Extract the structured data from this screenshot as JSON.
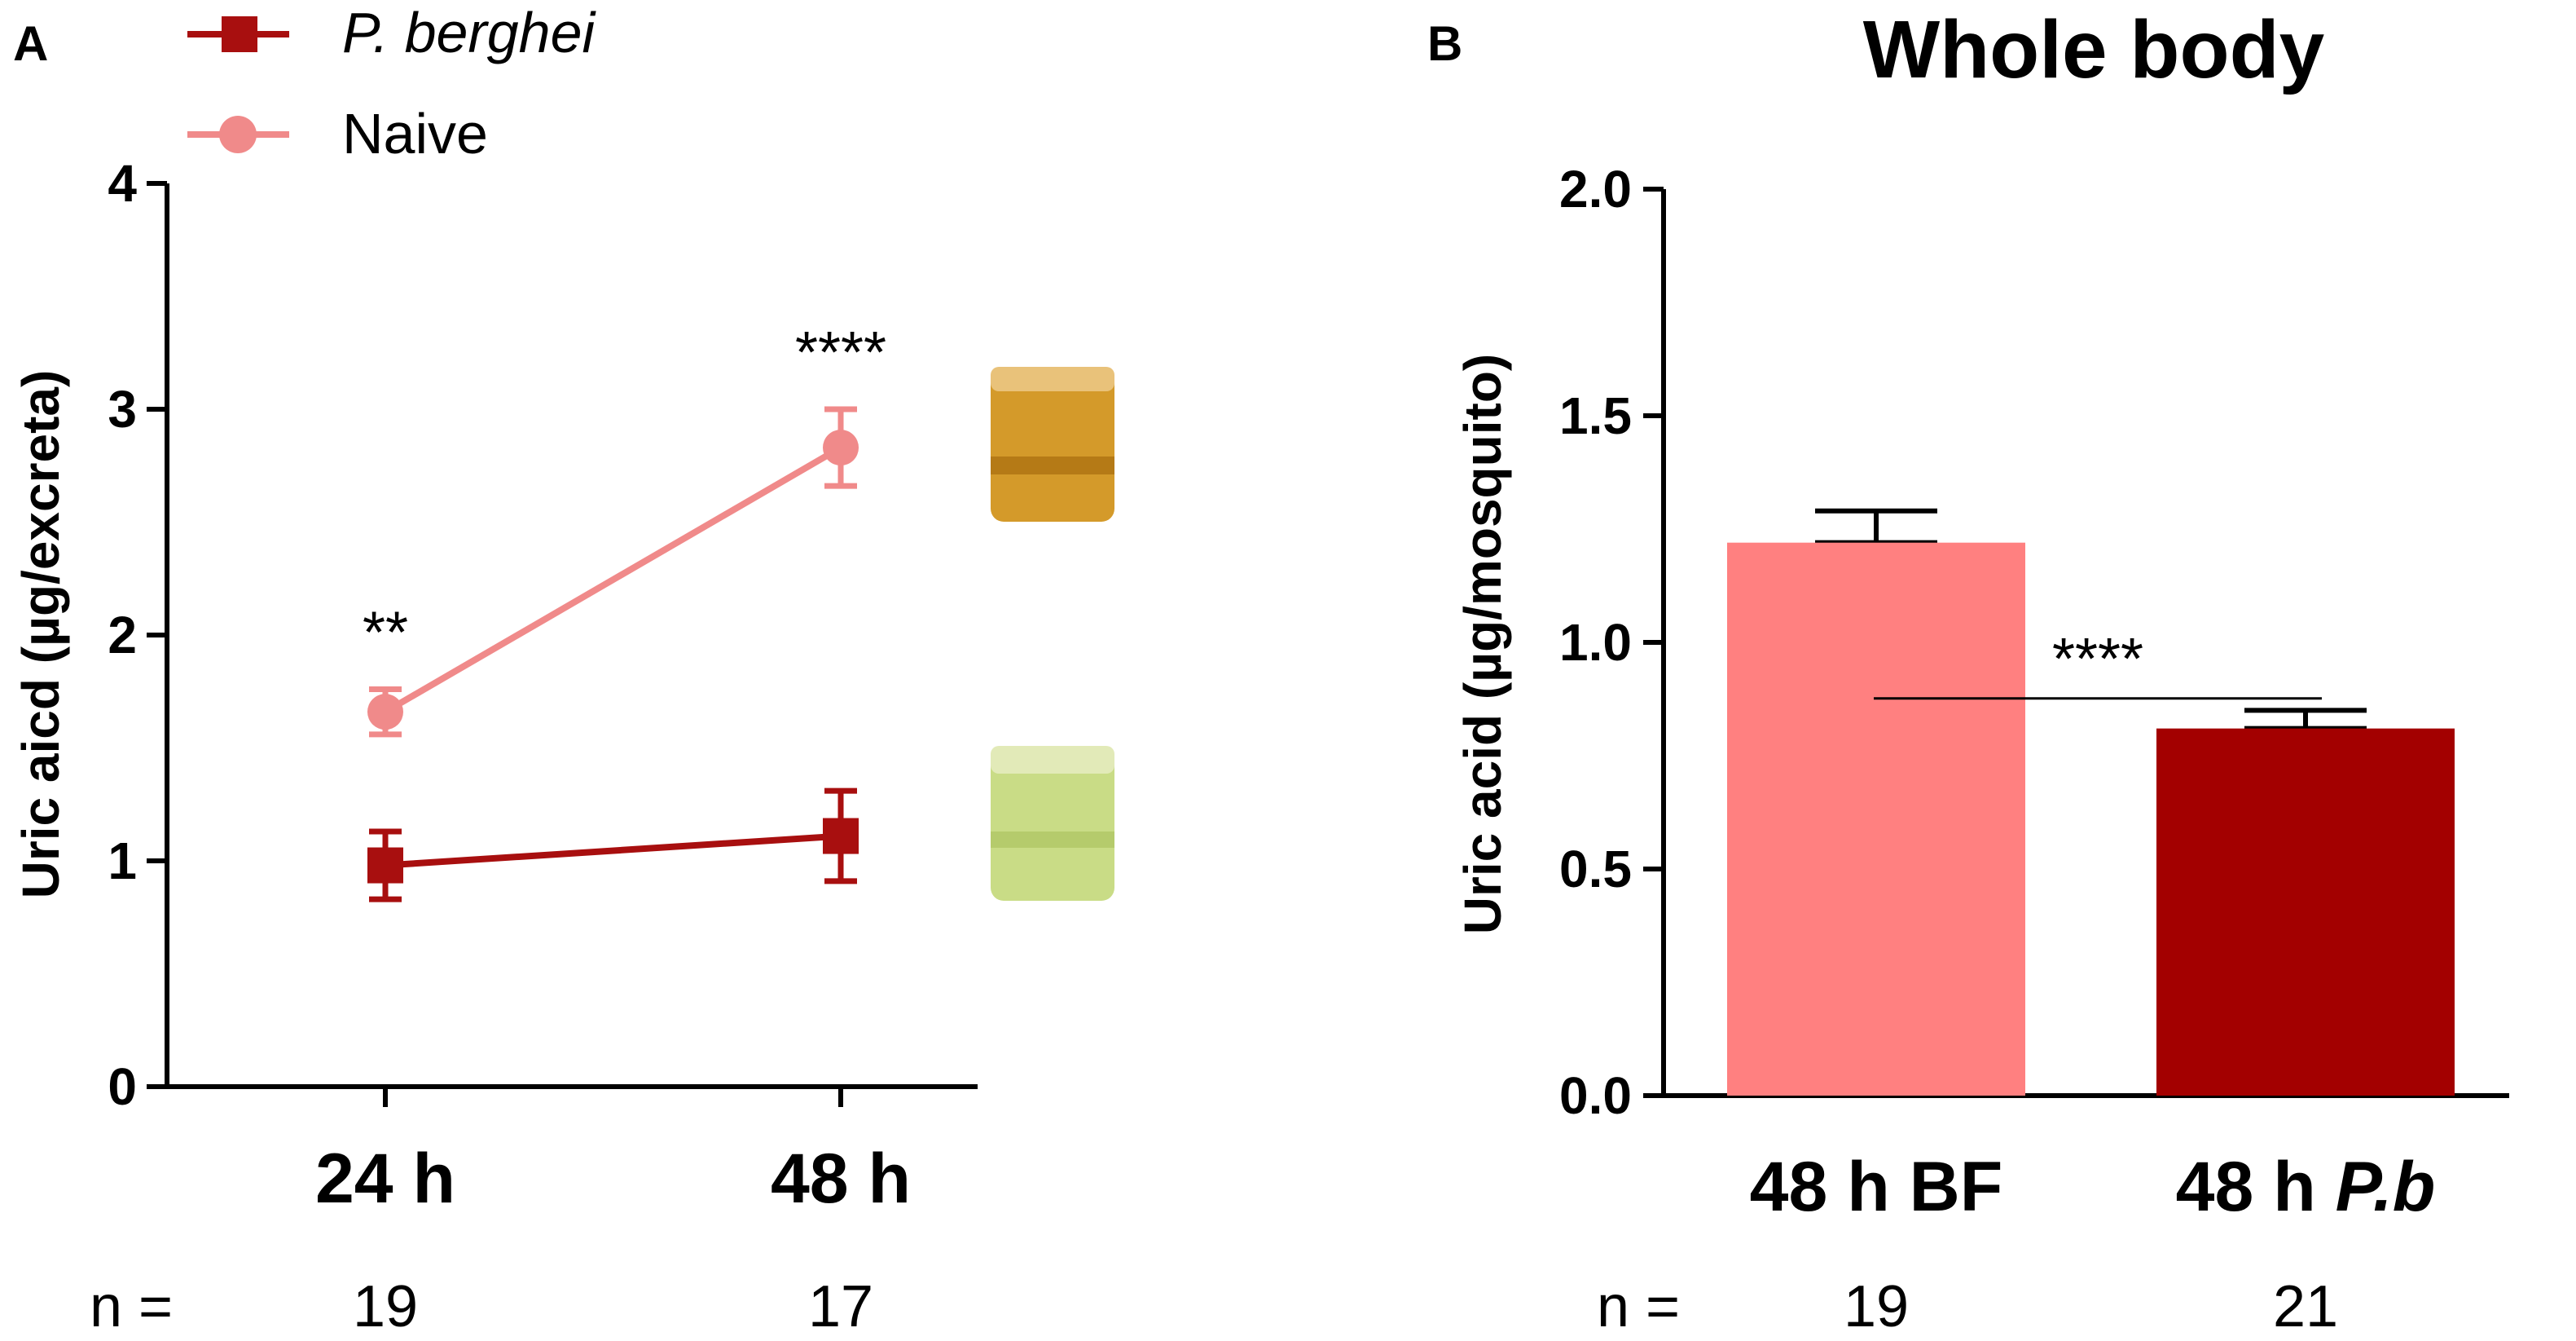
{
  "panels": {
    "a": {
      "letter": "A",
      "chart_data": {
        "type": "line",
        "categories": [
          "24 h",
          "48 h"
        ],
        "series": [
          {
            "name": "P. berghei",
            "values": [
              0.98,
              1.11
            ],
            "errors": [
              0.15,
              0.2
            ],
            "color": "#a80f0f",
            "marker": "square"
          },
          {
            "name": "Naive",
            "values": [
              1.66,
              2.83
            ],
            "errors": [
              0.1,
              0.17
            ],
            "color": "#f08a8a",
            "marker": "circle"
          }
        ],
        "significance": [
          "**",
          "****"
        ],
        "ylabel": "Uric aicd (µg/excreta)",
        "ylim": [
          0,
          4
        ],
        "yticks": [
          "0",
          "1",
          "2",
          "3",
          "4"
        ],
        "n_label": "n =",
        "n_values": [
          "19",
          "17"
        ]
      },
      "swatches": [
        {
          "name": "naive-excreta-photo",
          "color": "#d49a2a"
        },
        {
          "name": "infected-excreta-photo",
          "color": "#c9dc86"
        }
      ]
    },
    "b": {
      "letter": "B",
      "chart_data": {
        "type": "bar",
        "title": "Whole body",
        "categories": [
          "48 h BF",
          "48 h P.b"
        ],
        "category_prefix": [
          "48 h",
          "48 h"
        ],
        "category_suffix": [
          "BF",
          "P.b"
        ],
        "values": [
          1.22,
          0.81
        ],
        "errors": [
          0.07,
          0.04
        ],
        "colors": [
          "#ff8080",
          "#a30000"
        ],
        "significance": "****",
        "ylabel": "Uric acid (µg/mosquito)",
        "ylim": [
          0,
          2.0
        ],
        "yticks": [
          "0.0",
          "0.5",
          "1.0",
          "1.5",
          "2.0"
        ],
        "n_label": "n =",
        "n_values": [
          "19",
          "21"
        ]
      }
    }
  }
}
